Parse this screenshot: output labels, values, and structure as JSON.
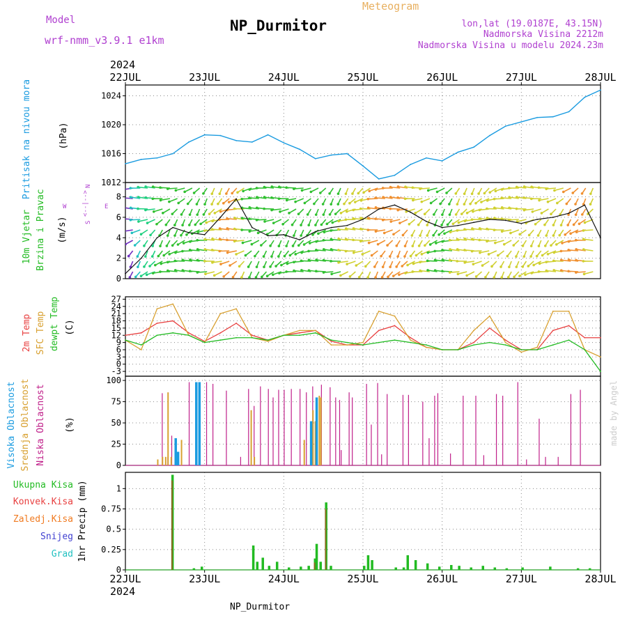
{
  "header": {
    "model_label": "Model",
    "model_name": "wrf-nmm_v3.9.1 e1km",
    "title": "NP_Durmitor",
    "subtitle": "Meteogram",
    "location": "lon,lat (19.0187E, 43.15N)",
    "elevation": "Nadmorska Visina 2212m",
    "model_elevation": "Nadmorska Visina u modelu 2024.23m",
    "year_top": "2024",
    "year_bottom": "2024",
    "footer": "NP_Durmitor",
    "credit": "made by Angel"
  },
  "colors": {
    "pressure": "#1a9be0",
    "wind_label": "#22bb22",
    "direction_label": "#b040d0",
    "temp2m": "#e84040",
    "sfc_temp": "#d8a030",
    "dewpoint": "#22bb22",
    "high_cloud": "#1a9be0",
    "mid_cloud": "#d8a030",
    "low_cloud": "#c0208a",
    "total_precip": "#22bb22",
    "convective": "#e84040",
    "freezing": "#f07a20",
    "snow": "#4040d0",
    "hail": "#20c0c0",
    "title": "#000000",
    "header_purple": "#b040d0",
    "meteogram": "#e8b060"
  },
  "chart_data": [
    {
      "type": "line",
      "panel": "pressure",
      "ylabel_main": "Pritisak na nivou mora",
      "ylabel_unit": "(hPa)",
      "x_labels": [
        "22JUL",
        "23JUL",
        "24JUL",
        "25JUL",
        "26JUL",
        "27JUL",
        "28JUL"
      ],
      "ylim": [
        1012,
        1025.5
      ],
      "yticks": [
        "1012",
        "1016",
        "1020",
        "1024"
      ],
      "grid": true,
      "series": [
        {
          "x": [
            0,
            0.2,
            0.4,
            0.6,
            0.8,
            1.0,
            1.2,
            1.4,
            1.6,
            1.8,
            2.0,
            2.2,
            2.4,
            2.6,
            2.8,
            3.0,
            3.2,
            3.4,
            3.6,
            3.8,
            4.0,
            4.2,
            4.4,
            4.6,
            4.8,
            5.0,
            5.2,
            5.4,
            5.6,
            5.8,
            6.0
          ],
          "values": [
            1014.6,
            1015.2,
            1015.4,
            1016.0,
            1017.6,
            1018.6,
            1018.5,
            1017.8,
            1017.6,
            1018.6,
            1017.5,
            1016.6,
            1015.3,
            1015.8,
            1016.0,
            1014.3,
            1012.5,
            1013.0,
            1014.5,
            1015.4,
            1015.0,
            1016.2,
            1016.9,
            1018.5,
            1019.8,
            1020.4,
            1021.0,
            1021.1,
            1021.8,
            1023.8,
            1024.8
          ]
        }
      ]
    },
    {
      "type": "line",
      "panel": "wind",
      "ylabel_main": "10m Vjetar",
      "ylabel_sub": "Brzina i Pravac",
      "ylabel_unit": "(m/s)",
      "direction_axis": [
        "W",
        "<--|-->",
        "E",
        "S",
        "N"
      ],
      "ylim": [
        0,
        9.4
      ],
      "yticks": [
        "0",
        "2",
        "4",
        "6",
        "8"
      ],
      "grid": true,
      "series": [
        {
          "x": [
            0,
            0.2,
            0.4,
            0.6,
            0.8,
            1.0,
            1.2,
            1.4,
            1.6,
            1.8,
            2.0,
            2.2,
            2.4,
            2.6,
            2.8,
            3.0,
            3.2,
            3.4,
            3.6,
            3.8,
            4.0,
            4.2,
            4.4,
            4.6,
            4.8,
            5.0,
            5.2,
            5.4,
            5.6,
            5.8,
            6.0
          ],
          "values": [
            0.5,
            2.0,
            4.0,
            5.0,
            4.5,
            4.3,
            6.0,
            7.8,
            5.0,
            4.2,
            4.3,
            3.8,
            4.6,
            5.0,
            5.2,
            5.8,
            6.8,
            7.2,
            6.5,
            5.6,
            5.0,
            5.2,
            5.5,
            5.8,
            5.7,
            5.4,
            5.8,
            6.0,
            6.4,
            7.2,
            4.0
          ]
        }
      ]
    },
    {
      "type": "line",
      "panel": "temperature",
      "ylabel_main": "2m Temp",
      "ylabel_sub": "SFC Temp",
      "ylabel_extra": "dewpt Temp",
      "ylabel_unit": "(C)",
      "ylim": [
        -5,
        28
      ],
      "yticks": [
        "-3",
        "0",
        "3",
        "6",
        "9",
        "12",
        "15",
        "18",
        "21",
        "24",
        "27"
      ],
      "grid": true,
      "series": [
        {
          "name": "2m Temp",
          "x": [
            0,
            0.2,
            0.4,
            0.6,
            0.8,
            1.0,
            1.2,
            1.4,
            1.6,
            1.8,
            2.0,
            2.2,
            2.4,
            2.6,
            2.8,
            3.0,
            3.2,
            3.4,
            3.6,
            3.8,
            4.0,
            4.2,
            4.4,
            4.6,
            4.8,
            5.0,
            5.2,
            5.4,
            5.6,
            5.8,
            6.0
          ],
          "values": [
            12,
            13,
            17,
            18,
            13,
            9.5,
            13,
            17,
            12,
            10,
            12,
            13,
            14,
            9.5,
            8,
            8,
            14,
            16,
            11,
            7,
            6,
            6,
            9,
            15,
            10,
            6,
            6,
            14,
            16,
            11,
            11
          ]
        },
        {
          "name": "SFC Temp",
          "x": [
            0,
            0.2,
            0.4,
            0.6,
            0.8,
            1.0,
            1.2,
            1.4,
            1.6,
            1.8,
            2.0,
            2.2,
            2.4,
            2.6,
            2.8,
            3.0,
            3.2,
            3.4,
            3.6,
            3.8,
            4.0,
            4.2,
            4.4,
            4.6,
            4.8,
            5.0,
            5.2,
            5.4,
            5.6,
            5.8,
            6.0
          ],
          "values": [
            10,
            6,
            23,
            25,
            12,
            9,
            21,
            23,
            11,
            9.5,
            12,
            14,
            14,
            8,
            8,
            9,
            22,
            20,
            10,
            7,
            6,
            6,
            14,
            20,
            9,
            5,
            7,
            22,
            22,
            6,
            3
          ]
        },
        {
          "name": "dewpt Temp",
          "x": [
            0,
            0.2,
            0.4,
            0.6,
            0.8,
            1.0,
            1.2,
            1.4,
            1.6,
            1.8,
            2.0,
            2.2,
            2.4,
            2.6,
            2.8,
            3.0,
            3.2,
            3.4,
            3.6,
            3.8,
            4.0,
            4.2,
            4.4,
            4.6,
            4.8,
            5.0,
            5.2,
            5.4,
            5.6,
            5.8,
            6.0
          ],
          "values": [
            10,
            8,
            12,
            13,
            12,
            9,
            10,
            11,
            11,
            10,
            12,
            12,
            13,
            10,
            9,
            8,
            9,
            10,
            9,
            8,
            6,
            6,
            8,
            9,
            8,
            6,
            6,
            8,
            10,
            6,
            -3
          ]
        }
      ]
    },
    {
      "type": "bar",
      "panel": "cloud",
      "ylabel_main": "Visoka Oblacnost",
      "ylabel_sub": "Srednja Oblacnost",
      "ylabel_extra": "Niska Oblacnost",
      "ylabel_unit": "(%)",
      "ylim": [
        0,
        105
      ],
      "yticks": [
        "0",
        "25",
        "50",
        "75",
        "100"
      ],
      "grid": true,
      "series": [
        {
          "name": "Niska Oblacnost",
          "x": [
            0.46,
            0.53,
            0.58,
            0.8,
            1.02,
            1.1,
            1.27,
            1.45,
            1.55,
            1.62,
            1.7,
            1.8,
            1.86,
            1.93,
            2.0,
            2.09,
            2.2,
            2.28,
            2.36,
            2.47,
            2.58,
            2.65,
            2.7,
            2.72,
            2.82,
            2.86,
            3.04,
            3.1,
            3.18,
            3.23,
            3.3,
            3.5,
            3.57,
            3.75,
            3.83,
            3.9,
            3.94,
            4.1,
            4.26,
            4.42,
            4.52,
            4.68,
            4.76,
            4.95,
            5.06,
            5.22,
            5.3,
            5.46,
            5.62,
            5.74
          ],
          "values": [
            85,
            10,
            35,
            98,
            98,
            96,
            88,
            10,
            90,
            70,
            93,
            90,
            80,
            89,
            89,
            90,
            90,
            86,
            93,
            95,
            92,
            80,
            77,
            18,
            86,
            80,
            96,
            48,
            97,
            13,
            84,
            83,
            83,
            75,
            32,
            82,
            85,
            14,
            82,
            82,
            12,
            84,
            82,
            98,
            7,
            55,
            10,
            10,
            84,
            89
          ]
        },
        {
          "name": "Srednja Oblacnost",
          "x": [
            0.4,
            0.46,
            0.5,
            0.53,
            0.57,
            0.7,
            1.58,
            1.62,
            2.25,
            2.36,
            2.39,
            2.44,
            2.46
          ],
          "values": [
            7,
            10,
            10,
            86,
            10,
            30,
            65,
            10,
            30,
            65,
            52,
            82,
            80
          ]
        },
        {
          "name": "Visoka Oblacnost",
          "x": [
            0.62,
            0.65,
            0.88,
            0.92,
            2.33,
            2.4
          ],
          "values": [
            32,
            16,
            98,
            98,
            52,
            80
          ]
        }
      ]
    },
    {
      "type": "bar",
      "panel": "precip",
      "ylabel_main": "1hr Precip (mm)",
      "legend": [
        "Ukupna Kisa",
        "Konvek.Kisa",
        "Zaledj.Kisa",
        "Snijeg",
        "Grad"
      ],
      "x_labels": [
        "22JUL",
        "23JUL",
        "24JUL",
        "25JUL",
        "26JUL",
        "27JUL",
        "28JUL"
      ],
      "ylim": [
        0,
        1.2
      ],
      "yticks": [
        "0",
        "0.25",
        "0.5",
        "0.75",
        "1"
      ],
      "grid": true,
      "series": [
        {
          "name": "Ukupna Kisa",
          "x": [
            0.58,
            0.85,
            0.95,
            1.6,
            1.65,
            1.72,
            1.8,
            1.9,
            2.05,
            2.2,
            2.3,
            2.38,
            2.4,
            2.45,
            2.52,
            2.58,
            3.0,
            3.05,
            3.1,
            3.4,
            3.5,
            3.55,
            3.65,
            3.8,
            3.95,
            4.1,
            4.2,
            4.35,
            4.5,
            4.65,
            4.8,
            5.0,
            5.35,
            5.7,
            5.85
          ],
          "values": [
            1.17,
            0.02,
            0.04,
            0.3,
            0.1,
            0.15,
            0.05,
            0.1,
            0.03,
            0.04,
            0.05,
            0.14,
            0.32,
            0.1,
            0.83,
            0.05,
            0.05,
            0.18,
            0.12,
            0.03,
            0.03,
            0.18,
            0.12,
            0.08,
            0.04,
            0.06,
            0.05,
            0.03,
            0.05,
            0.03,
            0.02,
            0.03,
            0.04,
            0.02,
            0.02
          ]
        },
        {
          "name": "Konvek.Kisa",
          "x": [
            0.58,
            2.38,
            2.52
          ],
          "values": [
            1.1,
            0.09,
            0.75
          ]
        }
      ]
    }
  ]
}
